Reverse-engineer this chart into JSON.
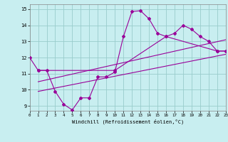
{
  "xlabel": "Windchill (Refroidissement éolien,°C)",
  "background_color": "#c8eef0",
  "grid_color": "#99cccc",
  "line_color": "#990099",
  "x_ticks": [
    0,
    1,
    2,
    3,
    4,
    5,
    6,
    7,
    8,
    9,
    10,
    11,
    12,
    13,
    14,
    15,
    16,
    17,
    18,
    19,
    20,
    21,
    22,
    23
  ],
  "y_ticks": [
    9,
    10,
    11,
    12,
    13,
    14,
    15
  ],
  "xlim": [
    0,
    23
  ],
  "ylim": [
    8.7,
    15.3
  ],
  "series1_x": [
    0,
    1,
    2,
    3,
    4,
    5,
    6,
    7,
    8,
    9,
    10,
    11,
    12,
    13,
    14,
    15,
    16,
    17,
    18,
    19,
    20,
    21,
    22,
    23
  ],
  "series1_y": [
    12.0,
    11.2,
    11.2,
    9.9,
    9.1,
    8.75,
    9.5,
    9.5,
    10.8,
    10.8,
    11.1,
    13.3,
    14.85,
    14.9,
    14.4,
    13.5,
    13.3,
    13.5,
    14.0,
    13.75,
    13.3,
    13.0,
    12.4,
    12.4
  ],
  "series2_x": [
    1,
    10,
    16,
    22,
    23
  ],
  "series2_y": [
    11.2,
    11.2,
    13.3,
    12.4,
    12.4
  ],
  "series3_x": [
    1,
    23
  ],
  "series3_y": [
    9.9,
    12.2
  ],
  "series4_x": [
    1,
    23
  ],
  "series4_y": [
    10.5,
    13.1
  ]
}
